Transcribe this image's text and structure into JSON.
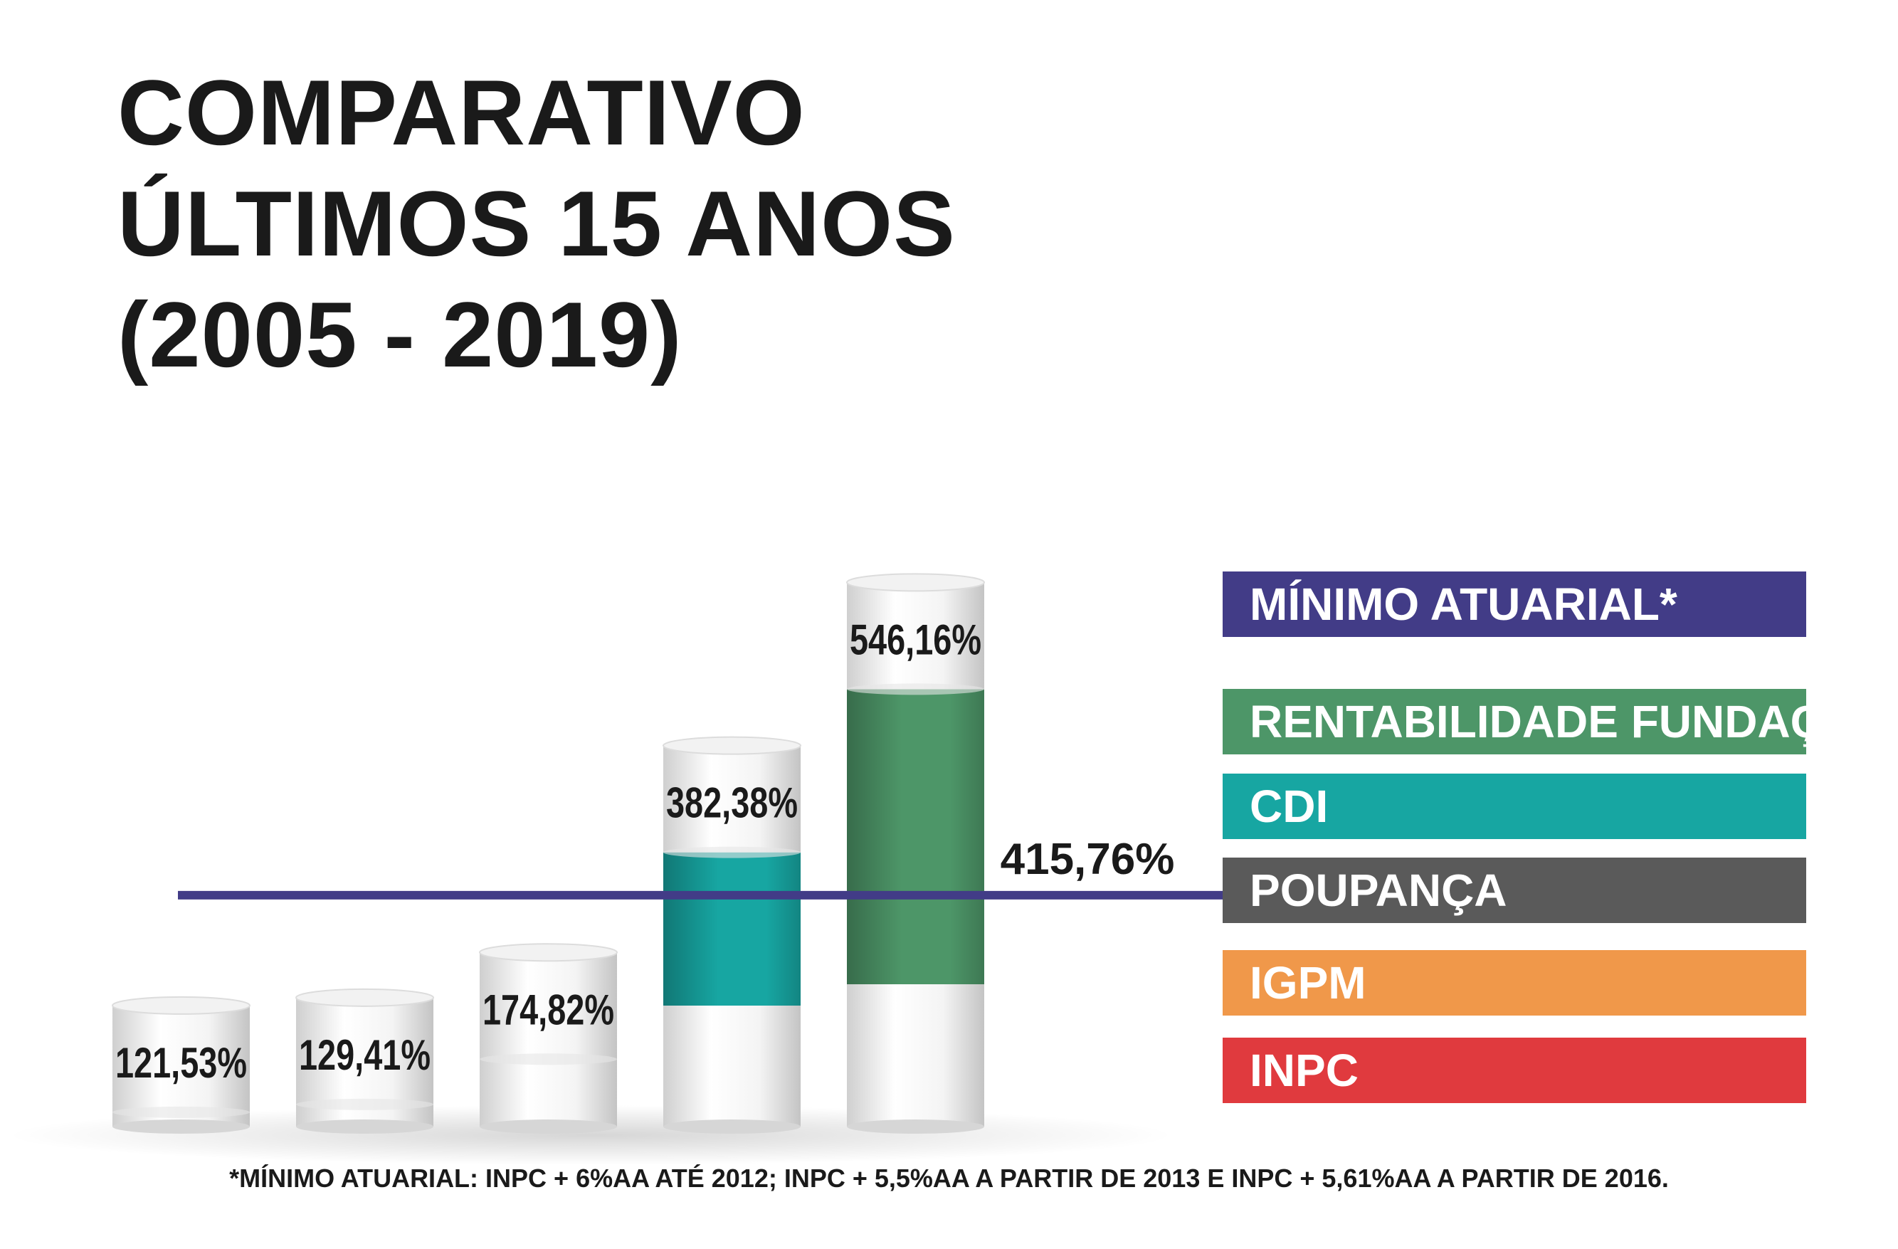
{
  "title": {
    "lines": [
      "COMPARATIVO",
      "ÚLTIMOS 15 ANOS",
      "(2005 - 2019)"
    ]
  },
  "chart_data": {
    "type": "bar",
    "title": "COMPARATIVO ÚLTIMOS 15 ANOS (2005 - 2019)",
    "categories": [
      "INPC",
      "IGPM",
      "POUPANÇA",
      "CDI",
      "RENTABILIDADE FUNDAÇÃO"
    ],
    "values": [
      121.53,
      129.41,
      174.82,
      382.38,
      546.16
    ],
    "value_labels": [
      "121,53%",
      "129,41%",
      "174,82%",
      "382,38%",
      "546,16%"
    ],
    "colors": [
      "#e03a3e",
      "#f0984a",
      "#5a5a5a",
      "#17a6a2",
      "#4d9668"
    ],
    "unit": "%",
    "reference_line": {
      "name": "MÍNIMO ATUARIAL*",
      "value": 415.76,
      "label": "415,76%",
      "color": "#423c87"
    },
    "legend": {
      "placement": "right",
      "items": [
        {
          "label": "MÍNIMO ATUARIAL*",
          "color": "#423c87"
        },
        {
          "label": "RENTABILIDADE FUNDAÇÃO",
          "color": "#4d9668"
        },
        {
          "label": "CDI",
          "color": "#17a6a2"
        },
        {
          "label": "POUPANÇA",
          "color": "#5a5a5a"
        },
        {
          "label": "IGPM",
          "color": "#f0984a"
        },
        {
          "label": "INPC",
          "color": "#e03a3e"
        }
      ]
    },
    "grid": false
  },
  "footnote": "*MÍNIMO ATUARIAL: INPC + 6%AA ATÉ 2012; INPC + 5,5%AA A PARTIR DE 2013 E INPC + 5,61%AA A PARTIR DE 2016."
}
